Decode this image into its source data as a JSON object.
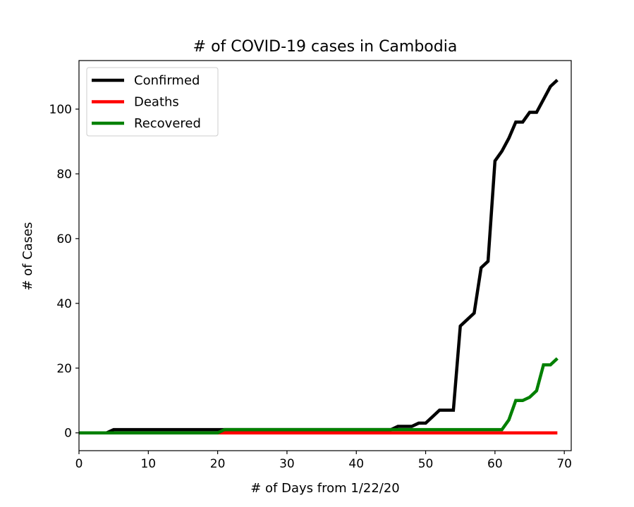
{
  "chart_data": {
    "type": "line",
    "title": "# of COVID-19 cases in Cambodia",
    "xlabel": "# of Days from 1/22/20",
    "ylabel": "# of Cases",
    "xlim": [
      0,
      71
    ],
    "ylim": [
      -5.5,
      115
    ],
    "xticks": [
      0,
      10,
      20,
      30,
      40,
      50,
      60,
      70
    ],
    "yticks": [
      0,
      20,
      40,
      60,
      80,
      100
    ],
    "grid": false,
    "legend_position": "top-left",
    "series": [
      {
        "name": "Confirmed",
        "color": "#000000",
        "x": [
          0,
          1,
          2,
          3,
          4,
          5,
          6,
          7,
          8,
          9,
          10,
          11,
          12,
          13,
          14,
          15,
          16,
          17,
          18,
          19,
          20,
          21,
          22,
          23,
          24,
          25,
          26,
          27,
          28,
          29,
          30,
          31,
          32,
          33,
          34,
          35,
          36,
          37,
          38,
          39,
          40,
          41,
          42,
          43,
          44,
          45,
          46,
          47,
          48,
          49,
          50,
          51,
          52,
          53,
          54,
          55,
          56,
          57,
          58,
          59,
          60,
          61,
          62,
          63,
          64,
          65,
          66,
          67,
          68,
          69
        ],
        "values": [
          0,
          0,
          0,
          0,
          0,
          1,
          1,
          1,
          1,
          1,
          1,
          1,
          1,
          1,
          1,
          1,
          1,
          1,
          1,
          1,
          1,
          1,
          1,
          1,
          1,
          1,
          1,
          1,
          1,
          1,
          1,
          1,
          1,
          1,
          1,
          1,
          1,
          1,
          1,
          1,
          1,
          1,
          1,
          1,
          1,
          1,
          2,
          2,
          2,
          3,
          3,
          5,
          7,
          7,
          7,
          33,
          35,
          37,
          51,
          53,
          84,
          87,
          91,
          96,
          96,
          99,
          99,
          103,
          107,
          109
        ]
      },
      {
        "name": "Deaths",
        "color": "#ff0000",
        "x": [
          0,
          1,
          2,
          3,
          4,
          5,
          6,
          7,
          8,
          9,
          10,
          11,
          12,
          13,
          14,
          15,
          16,
          17,
          18,
          19,
          20,
          21,
          22,
          23,
          24,
          25,
          26,
          27,
          28,
          29,
          30,
          31,
          32,
          33,
          34,
          35,
          36,
          37,
          38,
          39,
          40,
          41,
          42,
          43,
          44,
          45,
          46,
          47,
          48,
          49,
          50,
          51,
          52,
          53,
          54,
          55,
          56,
          57,
          58,
          59,
          60,
          61,
          62,
          63,
          64,
          65,
          66,
          67,
          68,
          69
        ],
        "values": [
          0,
          0,
          0,
          0,
          0,
          0,
          0,
          0,
          0,
          0,
          0,
          0,
          0,
          0,
          0,
          0,
          0,
          0,
          0,
          0,
          0,
          0,
          0,
          0,
          0,
          0,
          0,
          0,
          0,
          0,
          0,
          0,
          0,
          0,
          0,
          0,
          0,
          0,
          0,
          0,
          0,
          0,
          0,
          0,
          0,
          0,
          0,
          0,
          0,
          0,
          0,
          0,
          0,
          0,
          0,
          0,
          0,
          0,
          0,
          0,
          0,
          0,
          0,
          0,
          0,
          0,
          0,
          0,
          0,
          0
        ]
      },
      {
        "name": "Recovered",
        "color": "#008000",
        "x": [
          0,
          1,
          2,
          3,
          4,
          5,
          6,
          7,
          8,
          9,
          10,
          11,
          12,
          13,
          14,
          15,
          16,
          17,
          18,
          19,
          20,
          21,
          22,
          23,
          24,
          25,
          26,
          27,
          28,
          29,
          30,
          31,
          32,
          33,
          34,
          35,
          36,
          37,
          38,
          39,
          40,
          41,
          42,
          43,
          44,
          45,
          46,
          47,
          48,
          49,
          50,
          51,
          52,
          53,
          54,
          55,
          56,
          57,
          58,
          59,
          60,
          61,
          62,
          63,
          64,
          65,
          66,
          67,
          68,
          69
        ],
        "values": [
          0,
          0,
          0,
          0,
          0,
          0,
          0,
          0,
          0,
          0,
          0,
          0,
          0,
          0,
          0,
          0,
          0,
          0,
          0,
          0,
          0,
          1,
          1,
          1,
          1,
          1,
          1,
          1,
          1,
          1,
          1,
          1,
          1,
          1,
          1,
          1,
          1,
          1,
          1,
          1,
          1,
          1,
          1,
          1,
          1,
          1,
          1,
          1,
          1,
          1,
          1,
          1,
          1,
          1,
          1,
          1,
          1,
          1,
          1,
          1,
          1,
          1,
          4,
          10,
          10,
          11,
          13,
          21,
          21,
          23
        ]
      }
    ]
  }
}
